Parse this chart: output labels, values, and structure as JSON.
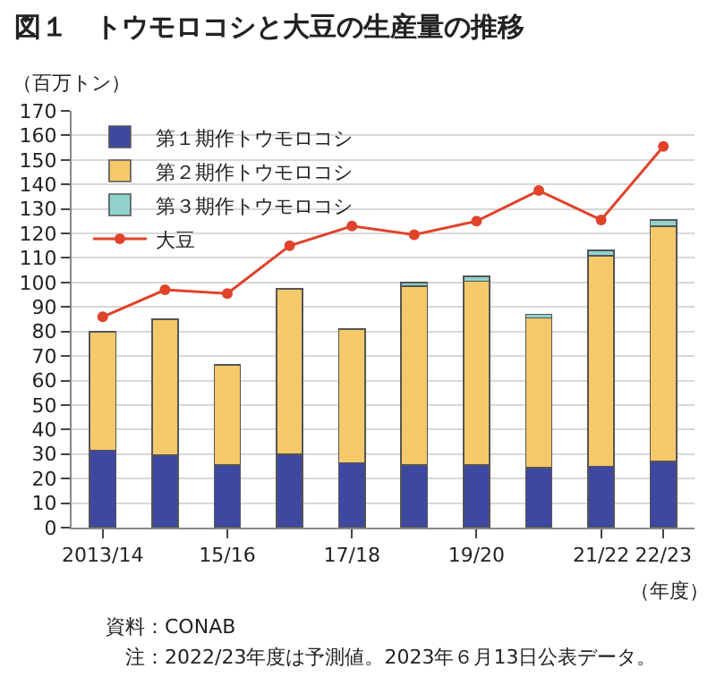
{
  "chart_data": {
    "type": "bar",
    "title": "図１　トウモロコシと大豆の生産量の推移",
    "ylabel": "（百万トン）",
    "xlabel": "（年度）",
    "categories": [
      "2013/14",
      null,
      "15/16",
      null,
      "17/18",
      null,
      "19/20",
      null,
      "21/22",
      "22/23"
    ],
    "stacked": true,
    "series": [
      {
        "name": "第１期作トウモロコシ",
        "color": "#3f48a0",
        "values": [
          31.5,
          29.5,
          25.5,
          30,
          26.5,
          25.5,
          25.5,
          24.5,
          25,
          27
        ]
      },
      {
        "name": "第２期作トウモロコシ",
        "color": "#f5c96a",
        "values": [
          48.5,
          55.5,
          41,
          67.5,
          54.5,
          73,
          75,
          61,
          86,
          96
        ]
      },
      {
        "name": "第３期作トウモロコシ",
        "color": "#8fd3cc",
        "values": [
          null,
          null,
          null,
          null,
          null,
          1.5,
          2,
          1.5,
          2,
          2.5
        ]
      },
      {
        "name": "大豆",
        "type": "line",
        "color": "#e0432a",
        "marker": "circle",
        "values": [
          86,
          97,
          95.5,
          115,
          123,
          119.5,
          125,
          137.5,
          125.5,
          155.5
        ]
      }
    ],
    "ylim": [
      0,
      170
    ],
    "yticks": [
      0,
      10,
      20,
      30,
      40,
      50,
      60,
      70,
      80,
      90,
      100,
      110,
      120,
      130,
      140,
      150,
      160,
      170
    ],
    "grid": "y",
    "legend": "top left",
    "annotations": [
      "資料：CONAB",
      "注：2022/23年度は予測値。2023年６月13日公表データ。"
    ]
  }
}
